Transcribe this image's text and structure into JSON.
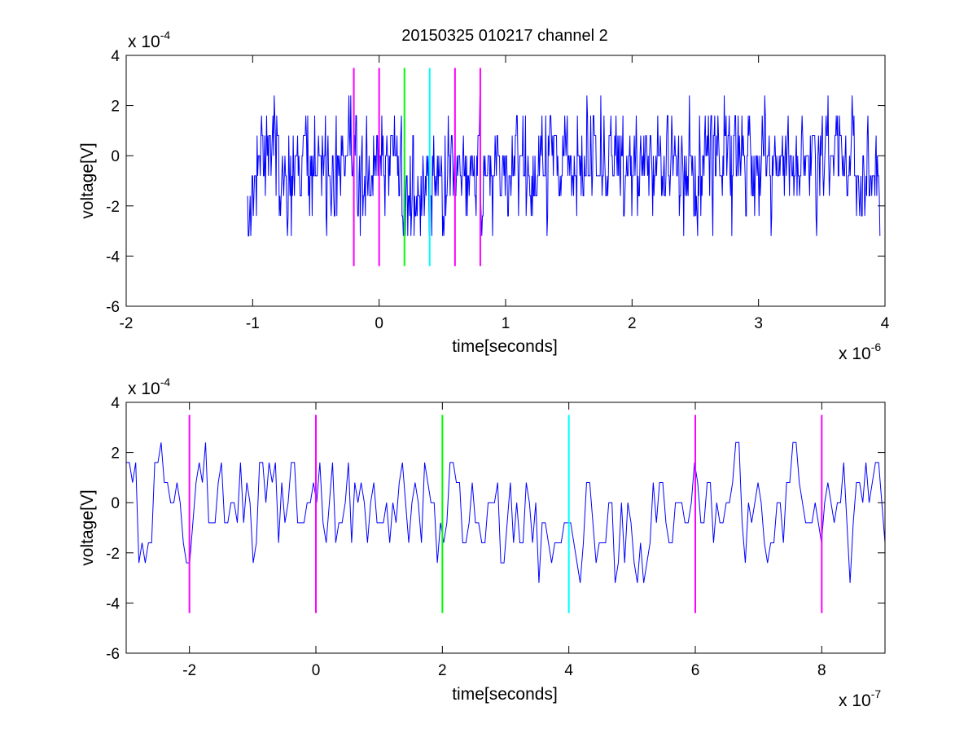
{
  "chart_data": [
    {
      "type": "line",
      "title": "20150325 010217 channel 2",
      "xlabel": "time[seconds]",
      "ylabel": "voltage[V]",
      "xlim": [
        -2,
        4
      ],
      "ylim": [
        -6,
        4
      ],
      "xticks": [
        -2,
        -1,
        0,
        1,
        2,
        3,
        4
      ],
      "yticks": [
        -6,
        -4,
        -2,
        0,
        2,
        4
      ],
      "x_multiplier": {
        "prefix": "x 10",
        "exponent": "-6"
      },
      "y_multiplier": {
        "prefix": "x 10",
        "exponent": "-4"
      },
      "signal": {
        "color": "#0000ff",
        "x_start": -1.04,
        "x_end": 3.96,
        "samples": 1000,
        "levels": [
          -3.2,
          -2.4,
          -1.6,
          -0.8,
          0,
          0.8,
          1.6,
          2.4,
          3.2
        ],
        "baseline": -0.4,
        "dip_range": [
          0.18,
          0.52
        ],
        "dip_offset": -1.1
      },
      "markers": [
        {
          "x": -0.2,
          "color": "#ff00ff",
          "y_range": [
            -4.4,
            3.5
          ]
        },
        {
          "x": 0,
          "color": "#ff00ff",
          "y_range": [
            -4.4,
            3.5
          ]
        },
        {
          "x": 0.2,
          "color": "#00ff00",
          "y_range": [
            -4.4,
            3.5
          ]
        },
        {
          "x": 0.4,
          "color": "#00ffff",
          "y_range": [
            -4.4,
            3.5
          ]
        },
        {
          "x": 0.6,
          "color": "#ff00ff",
          "y_range": [
            -4.4,
            3.5
          ]
        },
        {
          "x": 0.8,
          "color": "#ff00ff",
          "y_range": [
            -4.4,
            3.5
          ]
        }
      ]
    },
    {
      "type": "line",
      "title": "",
      "xlabel": "time[seconds]",
      "ylabel": "voltage[V]",
      "xlim": [
        -3,
        9
      ],
      "ylim": [
        -6,
        4
      ],
      "xticks": [
        -2,
        0,
        2,
        4,
        6,
        8
      ],
      "yticks": [
        -6,
        -4,
        -2,
        0,
        2,
        4
      ],
      "x_multiplier": {
        "prefix": "x 10",
        "exponent": "-7"
      },
      "y_multiplier": {
        "prefix": "x 10",
        "exponent": "-4"
      },
      "signal": {
        "color": "#0000ff",
        "x_start": -3,
        "x_end": 9,
        "samples": 240,
        "levels": [
          -3.2,
          -2.4,
          -1.6,
          -0.8,
          0,
          0.8,
          1.6,
          2.4
        ],
        "baseline": -0.2,
        "dip_range": [
          1.8,
          5.2
        ],
        "dip_offset": -1.1
      },
      "markers": [
        {
          "x": -2,
          "color": "#ff00ff",
          "y_range": [
            -4.4,
            3.5
          ]
        },
        {
          "x": 0,
          "color": "#ff00ff",
          "y_range": [
            -4.4,
            3.5
          ]
        },
        {
          "x": 2,
          "color": "#00ff00",
          "y_range": [
            -4.4,
            3.5
          ]
        },
        {
          "x": 4,
          "color": "#00ffff",
          "y_range": [
            -4.4,
            3.5
          ]
        },
        {
          "x": 6,
          "color": "#ff00ff",
          "y_range": [
            -4.4,
            3.5
          ]
        },
        {
          "x": 8,
          "color": "#ff00ff",
          "y_range": [
            -4.4,
            3.5
          ]
        }
      ]
    }
  ]
}
